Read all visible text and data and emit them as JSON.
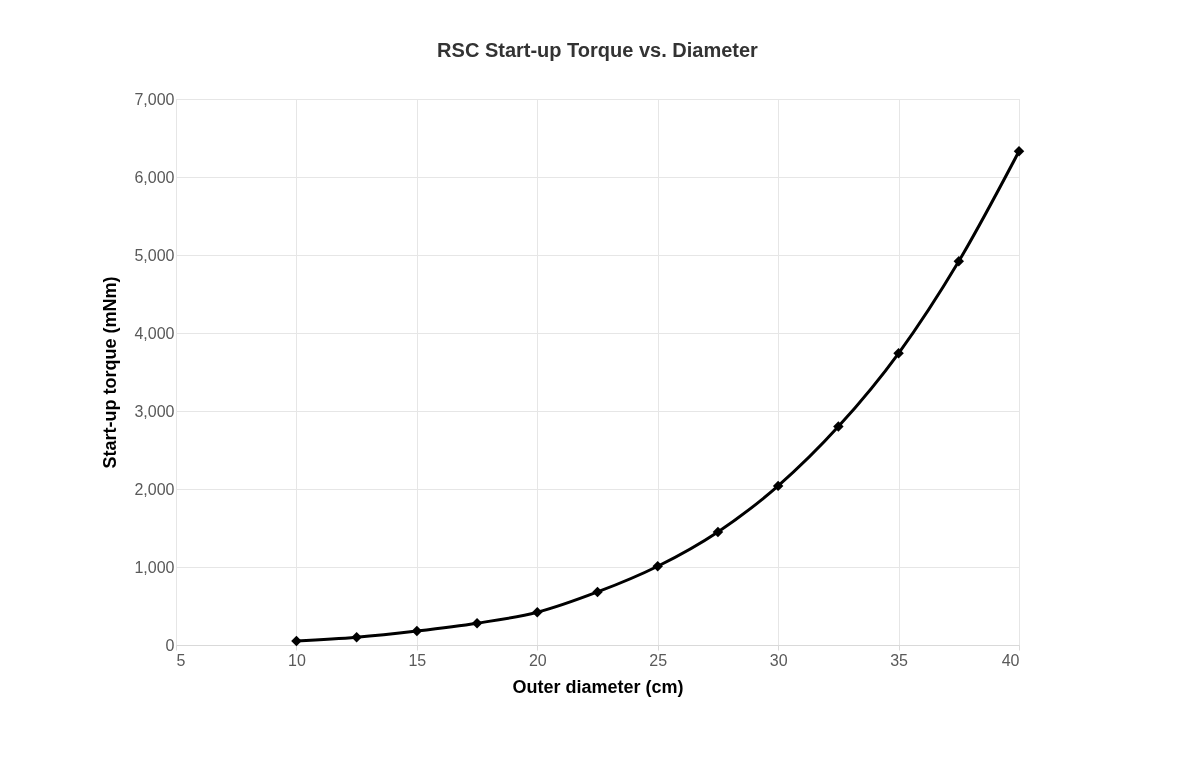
{
  "chart_data": {
    "type": "line",
    "title": "RSC Start-up Torque vs. Diameter",
    "xlabel": "Outer diameter (cm)",
    "ylabel": "Start-up torque (mNm)",
    "x": [
      10,
      12.5,
      15,
      17.5,
      20,
      22.5,
      25,
      27.5,
      30,
      32.5,
      35,
      37.5,
      40
    ],
    "series": [
      {
        "color": "#000000",
        "values": [
          50,
          100,
          180,
          280,
          420,
          680,
          1010,
          1450,
          2040,
          2800,
          3740,
          4920,
          6330
        ]
      }
    ],
    "xlim": [
      5,
      40
    ],
    "xticks": [
      5,
      10,
      15,
      20,
      25,
      30,
      35,
      40
    ],
    "ylim": [
      0,
      7000
    ],
    "yticks": [
      0,
      {
        "value": 1000,
        "label": "1,000"
      },
      {
        "value": 2000,
        "label": "2,000"
      },
      {
        "value": 3000,
        "label": "3,000"
      },
      {
        "value": 4000,
        "label": "4,000"
      },
      {
        "value": 5000,
        "label": "5,000"
      },
      {
        "value": 6000,
        "label": "6,000"
      },
      {
        "value": 7000,
        "label": "7,000"
      }
    ],
    "grid": true,
    "marker": "diamond",
    "line_style": "solid"
  }
}
